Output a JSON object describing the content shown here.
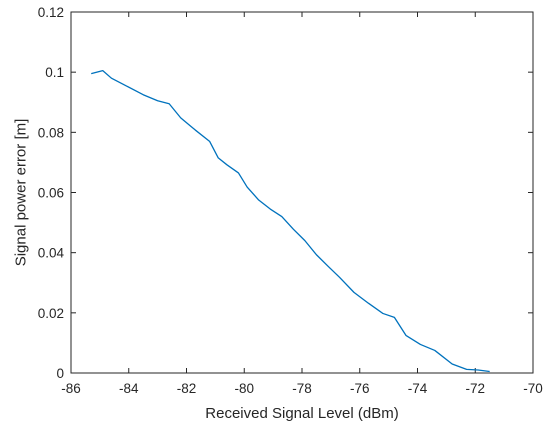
{
  "chart_data": {
    "type": "line",
    "title": "",
    "xlabel": "Received Signal Level (dBm)",
    "ylabel": "Signal power error [m]",
    "xlim": [
      -86,
      -70
    ],
    "ylim": [
      0,
      0.12
    ],
    "x_ticks": [
      -86,
      -84,
      -82,
      -80,
      -78,
      -76,
      -74,
      -72,
      -70
    ],
    "x_tick_labels": [
      "-86",
      "-84",
      "-82",
      "-80",
      "-78",
      "-76",
      "-74",
      "-72",
      "-70"
    ],
    "y_ticks": [
      0,
      0.02,
      0.04,
      0.06,
      0.08,
      0.1,
      0.12
    ],
    "y_tick_labels": [
      "0",
      "0.02",
      "0.04",
      "0.06",
      "0.08",
      "0.1",
      "0.12"
    ],
    "grid": false,
    "line_color": "#0072BD",
    "series": [
      {
        "x": [
          -85.3,
          -84.9,
          -84.6,
          -84.1,
          -83.5,
          -83.0,
          -82.6,
          -82.2,
          -81.7,
          -81.2,
          -80.9,
          -80.6,
          -80.2,
          -79.9,
          -79.5,
          -79.1,
          -78.7,
          -78.3,
          -77.9,
          -77.5,
          -77.1,
          -76.7,
          -76.2,
          -75.7,
          -75.2,
          -74.8,
          -74.4,
          -73.9,
          -73.4,
          -72.8,
          -72.3,
          -71.9,
          -71.5
        ],
        "values": [
          0.0995,
          0.1005,
          0.098,
          0.0955,
          0.0925,
          0.0905,
          0.0895,
          0.0848,
          0.0808,
          0.077,
          0.0715,
          0.0692,
          0.0665,
          0.0618,
          0.0575,
          0.0545,
          0.052,
          0.0478,
          0.044,
          0.0393,
          0.0355,
          0.0318,
          0.0268,
          0.0232,
          0.0198,
          0.0185,
          0.0125,
          0.0095,
          0.0075,
          0.003,
          0.0012,
          0.001,
          0.0005
        ]
      }
    ]
  }
}
